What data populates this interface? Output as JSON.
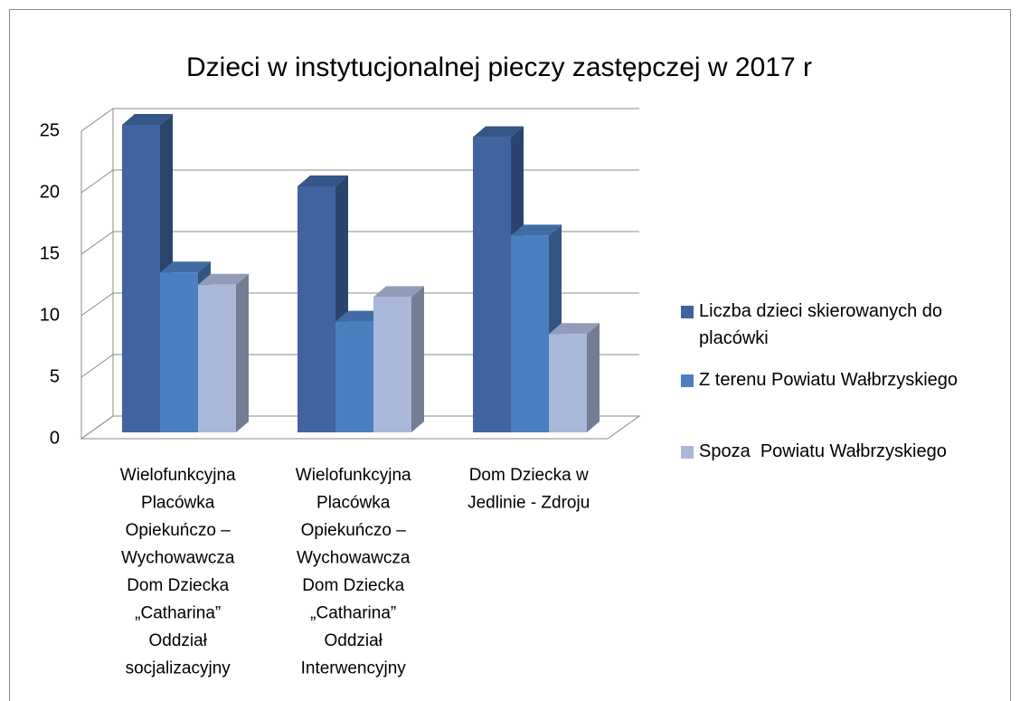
{
  "chart_data": {
    "type": "bar3d",
    "title": "Dzieci w instytucjonalnej pieczy zastępczej w 2017 r",
    "categories": [
      "Wielofunkcyjna Placówka Opiekuńczo – Wychowawcza Dom Dziecka „Catharina” Oddział socjalizacyjny",
      "Wielofunkcyjna Placówka Opiekuńczo – Wychowawcza Dom Dziecka „Catharina” Oddział Interwencyjny",
      "Dom Dziecka w Jedlinie - Zdroju"
    ],
    "series": [
      {
        "name": "Liczba dzieci skierowanych do placówki",
        "color": "#3f64a0",
        "values": [
          25,
          20,
          24
        ]
      },
      {
        "name": "Z terenu Powiatu Wałbrzyskiego",
        "color": "#4a7fc1",
        "values": [
          13,
          9,
          16
        ]
      },
      {
        "name": "Spoza  Powiatu Wałbrzyskiego",
        "color": "#a9b8d9",
        "values": [
          12,
          11,
          8
        ]
      }
    ],
    "ylim": [
      0,
      25
    ],
    "yticks": [
      0,
      5,
      10,
      15,
      20,
      25
    ],
    "grid": true,
    "legend": "right"
  }
}
